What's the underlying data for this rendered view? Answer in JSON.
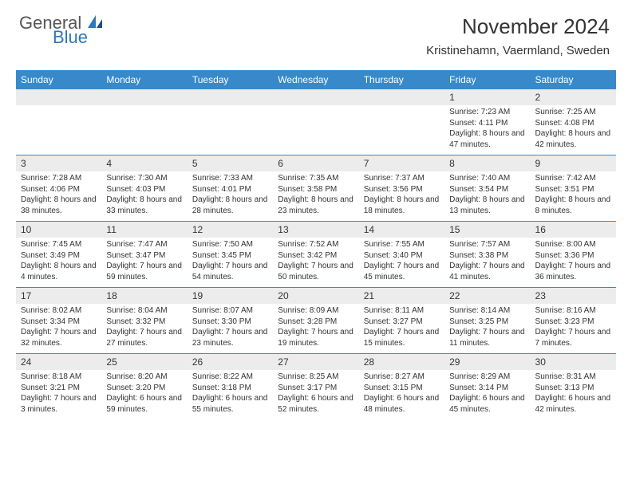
{
  "logo": {
    "general": "General",
    "blue": "Blue"
  },
  "title": {
    "month": "November 2024",
    "location": "Kristinehamn, Vaermland, Sweden"
  },
  "colors": {
    "header_bg": "#3789ca",
    "header_text": "#ffffff",
    "daynum_bg": "#ececec",
    "border": "#3789ca",
    "body_text": "#333333",
    "logo_blue": "#2d78bb",
    "background": "#ffffff"
  },
  "day_names": [
    "Sunday",
    "Monday",
    "Tuesday",
    "Wednesday",
    "Thursday",
    "Friday",
    "Saturday"
  ],
  "weeks": [
    {
      "nums": [
        "",
        "",
        "",
        "",
        "",
        "1",
        "2"
      ],
      "cells": [
        "",
        "",
        "",
        "",
        "",
        "Sunrise: 7:23 AM\nSunset: 4:11 PM\nDaylight: 8 hours and 47 minutes.",
        "Sunrise: 7:25 AM\nSunset: 4:08 PM\nDaylight: 8 hours and 42 minutes."
      ]
    },
    {
      "nums": [
        "3",
        "4",
        "5",
        "6",
        "7",
        "8",
        "9"
      ],
      "cells": [
        "Sunrise: 7:28 AM\nSunset: 4:06 PM\nDaylight: 8 hours and 38 minutes.",
        "Sunrise: 7:30 AM\nSunset: 4:03 PM\nDaylight: 8 hours and 33 minutes.",
        "Sunrise: 7:33 AM\nSunset: 4:01 PM\nDaylight: 8 hours and 28 minutes.",
        "Sunrise: 7:35 AM\nSunset: 3:58 PM\nDaylight: 8 hours and 23 minutes.",
        "Sunrise: 7:37 AM\nSunset: 3:56 PM\nDaylight: 8 hours and 18 minutes.",
        "Sunrise: 7:40 AM\nSunset: 3:54 PM\nDaylight: 8 hours and 13 minutes.",
        "Sunrise: 7:42 AM\nSunset: 3:51 PM\nDaylight: 8 hours and 8 minutes."
      ]
    },
    {
      "nums": [
        "10",
        "11",
        "12",
        "13",
        "14",
        "15",
        "16"
      ],
      "cells": [
        "Sunrise: 7:45 AM\nSunset: 3:49 PM\nDaylight: 8 hours and 4 minutes.",
        "Sunrise: 7:47 AM\nSunset: 3:47 PM\nDaylight: 7 hours and 59 minutes.",
        "Sunrise: 7:50 AM\nSunset: 3:45 PM\nDaylight: 7 hours and 54 minutes.",
        "Sunrise: 7:52 AM\nSunset: 3:42 PM\nDaylight: 7 hours and 50 minutes.",
        "Sunrise: 7:55 AM\nSunset: 3:40 PM\nDaylight: 7 hours and 45 minutes.",
        "Sunrise: 7:57 AM\nSunset: 3:38 PM\nDaylight: 7 hours and 41 minutes.",
        "Sunrise: 8:00 AM\nSunset: 3:36 PM\nDaylight: 7 hours and 36 minutes."
      ]
    },
    {
      "nums": [
        "17",
        "18",
        "19",
        "20",
        "21",
        "22",
        "23"
      ],
      "cells": [
        "Sunrise: 8:02 AM\nSunset: 3:34 PM\nDaylight: 7 hours and 32 minutes.",
        "Sunrise: 8:04 AM\nSunset: 3:32 PM\nDaylight: 7 hours and 27 minutes.",
        "Sunrise: 8:07 AM\nSunset: 3:30 PM\nDaylight: 7 hours and 23 minutes.",
        "Sunrise: 8:09 AM\nSunset: 3:28 PM\nDaylight: 7 hours and 19 minutes.",
        "Sunrise: 8:11 AM\nSunset: 3:27 PM\nDaylight: 7 hours and 15 minutes.",
        "Sunrise: 8:14 AM\nSunset: 3:25 PM\nDaylight: 7 hours and 11 minutes.",
        "Sunrise: 8:16 AM\nSunset: 3:23 PM\nDaylight: 7 hours and 7 minutes."
      ]
    },
    {
      "nums": [
        "24",
        "25",
        "26",
        "27",
        "28",
        "29",
        "30"
      ],
      "cells": [
        "Sunrise: 8:18 AM\nSunset: 3:21 PM\nDaylight: 7 hours and 3 minutes.",
        "Sunrise: 8:20 AM\nSunset: 3:20 PM\nDaylight: 6 hours and 59 minutes.",
        "Sunrise: 8:22 AM\nSunset: 3:18 PM\nDaylight: 6 hours and 55 minutes.",
        "Sunrise: 8:25 AM\nSunset: 3:17 PM\nDaylight: 6 hours and 52 minutes.",
        "Sunrise: 8:27 AM\nSunset: 3:15 PM\nDaylight: 6 hours and 48 minutes.",
        "Sunrise: 8:29 AM\nSunset: 3:14 PM\nDaylight: 6 hours and 45 minutes.",
        "Sunrise: 8:31 AM\nSunset: 3:13 PM\nDaylight: 6 hours and 42 minutes."
      ]
    }
  ]
}
